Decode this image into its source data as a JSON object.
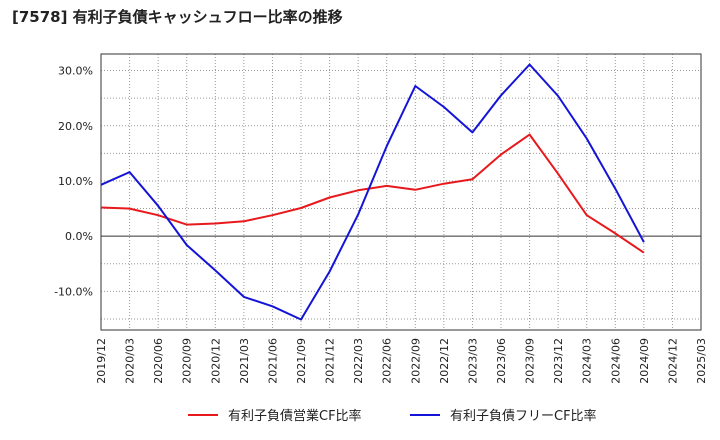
{
  "title": "[7578]  有利子負債キャッシュフロー比率の推移",
  "chart_data": {
    "type": "line",
    "title": "[7578]  有利子負債キャッシュフロー比率の推移",
    "xlabel": "",
    "ylabel": "",
    "x": [
      "2019/12",
      "2020/03",
      "2020/06",
      "2020/09",
      "2020/12",
      "2021/03",
      "2021/06",
      "2021/09",
      "2021/12",
      "2022/03",
      "2022/06",
      "2022/09",
      "2022/12",
      "2023/03",
      "2023/06",
      "2023/09",
      "2023/12",
      "2024/03",
      "2024/06",
      "2024/09",
      "2024/12",
      "2025/03"
    ],
    "ylim": [
      -17,
      33
    ],
    "yticks": [
      "30.0%",
      "20.0%",
      "10.0%",
      "0.0%",
      "-10.0%"
    ],
    "ytick_values": [
      30,
      20,
      10,
      0,
      -10
    ],
    "grid": true,
    "legend_position": "bottom",
    "series": [
      {
        "name": "有利子負債営業CF比率",
        "color": "#e8191c",
        "values": [
          5.2,
          5.0,
          3.8,
          2.1,
          2.3,
          2.7,
          3.8,
          5.1,
          7.0,
          8.3,
          9.1,
          8.4,
          9.5,
          10.3,
          14.8,
          18.4,
          11.3,
          3.8,
          0.5,
          -3.0,
          null,
          null
        ]
      },
      {
        "name": "有利子負債フリーCF比率",
        "color": "#1414d8",
        "values": [
          9.3,
          11.6,
          5.5,
          -1.6,
          -6.2,
          -11.0,
          -12.7,
          -15.1,
          -6.4,
          3.9,
          16.3,
          27.2,
          23.4,
          18.8,
          25.5,
          31.1,
          25.4,
          17.7,
          8.6,
          -1.1,
          null,
          null
        ]
      }
    ]
  }
}
